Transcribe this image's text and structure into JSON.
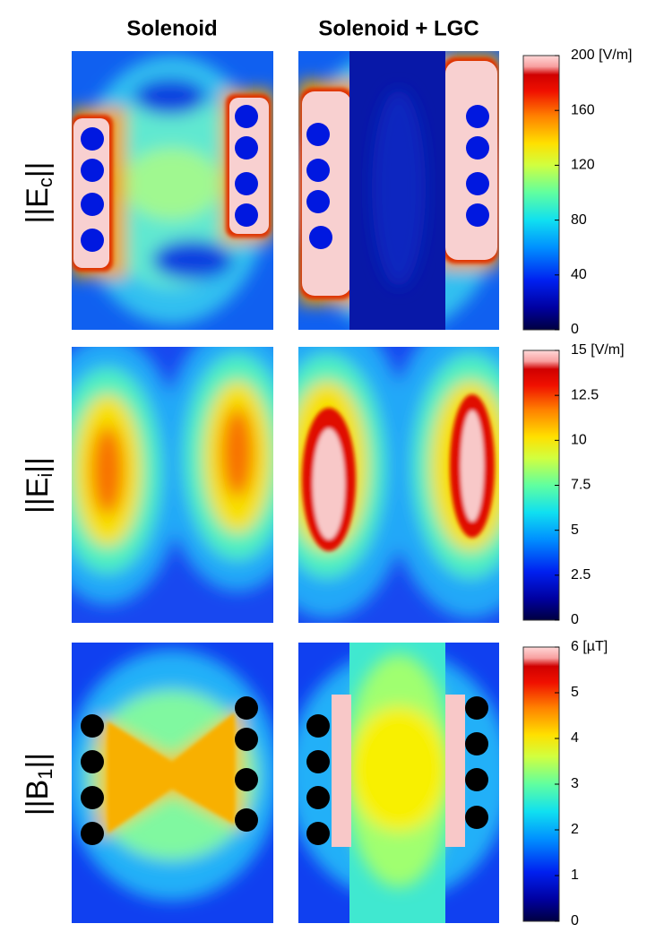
{
  "column_titles": [
    "Solenoid",
    "Solenoid + LGC"
  ],
  "chart_data": [
    {
      "type": "heatmap",
      "row_label": [
        "||E",
        "c",
        "||"
      ],
      "zlim": [
        0,
        200
      ],
      "zticks": [
        0,
        40,
        80,
        120,
        160,
        {
          "value": 200,
          "label": "200 [V/m]"
        }
      ]
    },
    {
      "type": "heatmap",
      "row_label": [
        "||E",
        "i",
        "||"
      ],
      "zlim": [
        0,
        15
      ],
      "zticks": [
        0,
        2.5,
        5,
        7.5,
        10,
        12.5,
        {
          "value": 15,
          "label": "15 [V/m]"
        }
      ]
    },
    {
      "type": "heatmap",
      "row_label": [
        "||B",
        "1",
        "||"
      ],
      "zlim": [
        0,
        6
      ],
      "zticks": [
        0,
        1,
        2,
        3,
        4,
        5,
        {
          "value": 6,
          "label": "6 [µT]"
        }
      ]
    }
  ]
}
